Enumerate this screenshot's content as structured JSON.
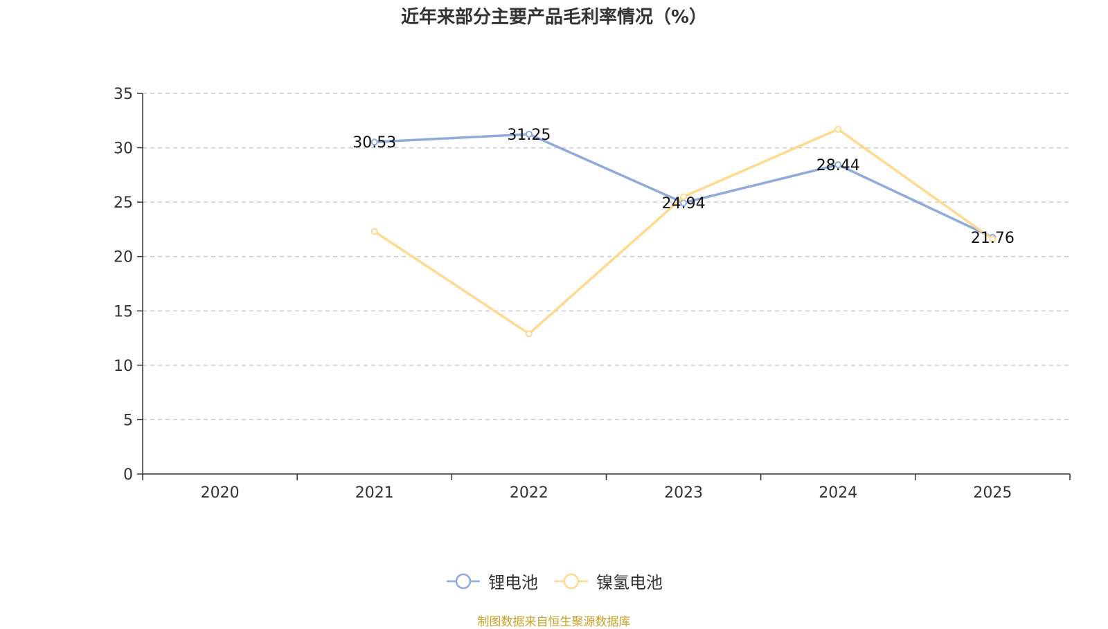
{
  "chart_data": {
    "type": "line",
    "title": "近年来部分主要产品毛利率情况（%）",
    "xlabel": "",
    "ylabel": "",
    "categories": [
      "2020",
      "2021",
      "2022",
      "2023",
      "2024",
      "2025"
    ],
    "ylim": [
      0,
      35
    ],
    "yticks": [
      0,
      5,
      10,
      15,
      20,
      25,
      30,
      35
    ],
    "grid": true,
    "legend_position": "bottom",
    "series": [
      {
        "name": "锂电池",
        "color": "#8FAADC",
        "values": [
          null,
          30.53,
          31.25,
          24.94,
          28.44,
          21.76
        ],
        "labels": [
          "",
          "30.53",
          "31.25",
          "24.94",
          "28.44",
          "21.76"
        ]
      },
      {
        "name": "镍氢电池",
        "color": "#FFD98E",
        "values": [
          null,
          22.3,
          12.9,
          25.5,
          31.7,
          21.6
        ],
        "labels": [
          "",
          "",
          "",
          "",
          "",
          ""
        ]
      }
    ],
    "source": "制图数据来自恒生聚源数据库"
  }
}
